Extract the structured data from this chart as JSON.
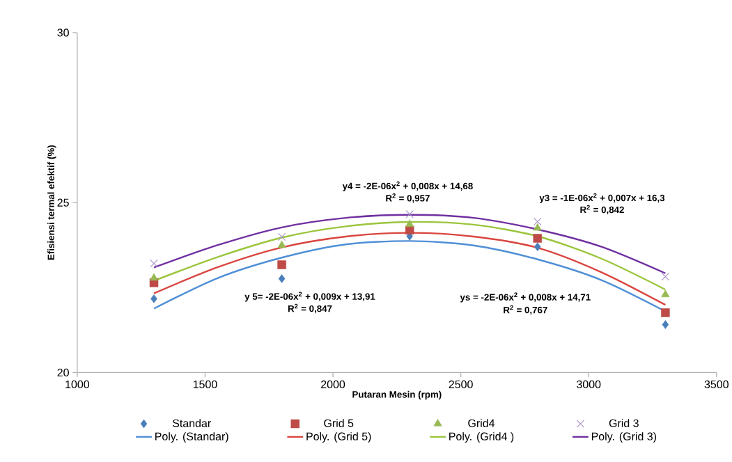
{
  "chart_data": {
    "type": "scatter",
    "xlabel": "Putaran Mesin (rpm)",
    "ylabel": "Efisiensi termal efektif (%)",
    "xlim": [
      1000,
      3500
    ],
    "xticks": [
      1000,
      1500,
      2000,
      2500,
      3000,
      3500
    ],
    "ylim": [
      20,
      30
    ],
    "yticks": [
      20,
      25,
      30
    ],
    "grid": false,
    "legend": "bottom",
    "series": [
      {
        "name": "Standar",
        "marker": "diamond",
        "color": "#4a7ebb",
        "x": [
          1300,
          1800,
          2300,
          2800,
          3300
        ],
        "values": [
          22.17,
          22.76,
          24.01,
          23.7,
          21.41
        ]
      },
      {
        "name": "Grid 5",
        "marker": "square",
        "color": "#be4b48",
        "x": [
          1300,
          1800,
          2300,
          2800,
          3300
        ],
        "values": [
          22.64,
          23.17,
          24.19,
          23.95,
          21.76
        ]
      },
      {
        "name": "Grid4",
        "marker": "triangle",
        "color": "#98b954",
        "x": [
          1300,
          1800,
          2300,
          2800,
          3300
        ],
        "values": [
          22.78,
          23.74,
          24.36,
          24.25,
          22.29
        ]
      },
      {
        "name": "Grid 3",
        "marker": "cross",
        "color": "#a58fc6",
        "x": [
          1300,
          1800,
          2300,
          2800,
          3300
        ],
        "values": [
          23.21,
          23.99,
          24.66,
          24.44,
          22.82
        ]
      },
      {
        "name": "Poly. (Standar)",
        "type": "line",
        "marker": "none",
        "color": "#4f8fd6",
        "x": [
          1300,
          1550,
          1800,
          2050,
          2300,
          2550,
          2800,
          3050,
          3300
        ],
        "values": [
          21.88,
          22.78,
          23.38,
          23.77,
          23.87,
          23.74,
          23.33,
          22.72,
          21.8
        ]
      },
      {
        "name": "Poly. (Grid 5)",
        "type": "line",
        "marker": "none",
        "color": "#d9453f",
        "x": [
          1300,
          1550,
          1800,
          2050,
          2300,
          2550,
          2800,
          3050,
          3300
        ],
        "values": [
          22.33,
          23.1,
          23.68,
          24.0,
          24.11,
          24.0,
          23.67,
          22.95,
          21.99
        ]
      },
      {
        "name": "Poly. (Grid4 )",
        "type": "line",
        "marker": "none",
        "color": "#9bc53d",
        "x": [
          1300,
          1550,
          1800,
          2050,
          2300,
          2550,
          2800,
          3050,
          3300
        ],
        "values": [
          22.7,
          23.4,
          23.97,
          24.3,
          24.43,
          24.35,
          24.01,
          23.35,
          22.44
        ]
      },
      {
        "name": "Poly. (Grid 3)",
        "type": "line",
        "marker": "none",
        "color": "#7030a0",
        "x": [
          1300,
          1550,
          1800,
          2050,
          2300,
          2550,
          2800,
          3050,
          3300
        ],
        "values": [
          23.09,
          23.75,
          24.27,
          24.55,
          24.64,
          24.55,
          24.21,
          23.7,
          22.92
        ]
      }
    ],
    "annotations": [
      "y4 = -2E-06x$^{2}$ + 0,008x + 14,68",
      "R$^{2}$ = 0,957",
      "y3 = -1E-06x$^{2}$ + 0,007x + 16,3",
      "R$^{2}$ = 0,842",
      "y 5= -2E-06x$^{2}$ + 0,009x + 13,91",
      "R$^{2}$ = 0,847",
      "ys = -2E-06x$^{2}$ + 0,008x + 14,71",
      "R$^{2}$ = 0,767"
    ]
  }
}
